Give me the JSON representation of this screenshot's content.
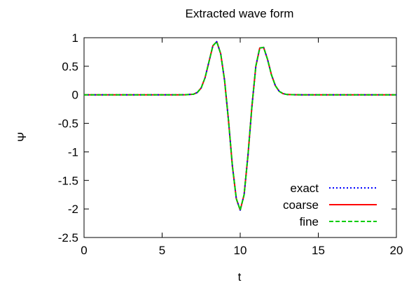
{
  "chart_data": {
    "type": "line",
    "title": "Extracted wave form",
    "xlabel": "t",
    "ylabel": "Ψ",
    "xlim": [
      0,
      20
    ],
    "ylim": [
      -2.5,
      1
    ],
    "xticks": [
      0,
      5,
      10,
      15,
      20
    ],
    "xtick_labels": [
      "0",
      "5",
      "10",
      "15",
      "20"
    ],
    "yticks": [
      1,
      0.5,
      0,
      -0.5,
      -1,
      -1.5,
      -2,
      -2.5
    ],
    "ytick_labels": [
      "1",
      "0.5",
      "0",
      "-0.5",
      "-1",
      "-1.5",
      "-2",
      "-2.5"
    ],
    "grid": false,
    "legend_position": "bottom-right",
    "x": [
      0,
      5,
      6,
      6.5,
      7,
      7.25,
      7.5,
      7.75,
      8,
      8.25,
      8.5,
      8.75,
      9,
      9.25,
      9.5,
      9.75,
      10,
      10.25,
      10.5,
      10.75,
      11,
      11.25,
      11.5,
      11.75,
      12,
      12.25,
      12.5,
      12.75,
      13,
      13.5,
      14,
      15,
      20
    ],
    "series": [
      {
        "name": "exact",
        "color": "#0000ff",
        "dash": "dotted",
        "values": [
          0,
          0,
          0,
          0.001,
          0.01,
          0.04,
          0.12,
          0.3,
          0.58,
          0.86,
          0.93,
          0.72,
          0.25,
          -0.45,
          -1.25,
          -1.82,
          -2.02,
          -1.75,
          -1.05,
          -0.2,
          0.5,
          0.82,
          0.83,
          0.62,
          0.35,
          0.16,
          0.06,
          0.02,
          0.005,
          0.001,
          0,
          0,
          0
        ]
      },
      {
        "name": "coarse",
        "color": "#ff0000",
        "dash": "solid",
        "values": [
          0,
          0,
          0,
          0.001,
          0.01,
          0.04,
          0.12,
          0.3,
          0.58,
          0.86,
          0.93,
          0.72,
          0.25,
          -0.45,
          -1.25,
          -1.82,
          -2.02,
          -1.75,
          -1.05,
          -0.2,
          0.5,
          0.82,
          0.83,
          0.62,
          0.35,
          0.16,
          0.06,
          0.02,
          0.005,
          0.001,
          0,
          0,
          0
        ]
      },
      {
        "name": "fine",
        "color": "#00cc00",
        "dash": "dashed",
        "values": [
          0,
          0,
          0,
          0.001,
          0.01,
          0.04,
          0.12,
          0.3,
          0.58,
          0.86,
          0.93,
          0.72,
          0.25,
          -0.45,
          -1.25,
          -1.82,
          -2.02,
          -1.75,
          -1.05,
          -0.2,
          0.5,
          0.82,
          0.83,
          0.62,
          0.35,
          0.16,
          0.06,
          0.02,
          0.005,
          0.001,
          0,
          0,
          0
        ]
      }
    ]
  }
}
